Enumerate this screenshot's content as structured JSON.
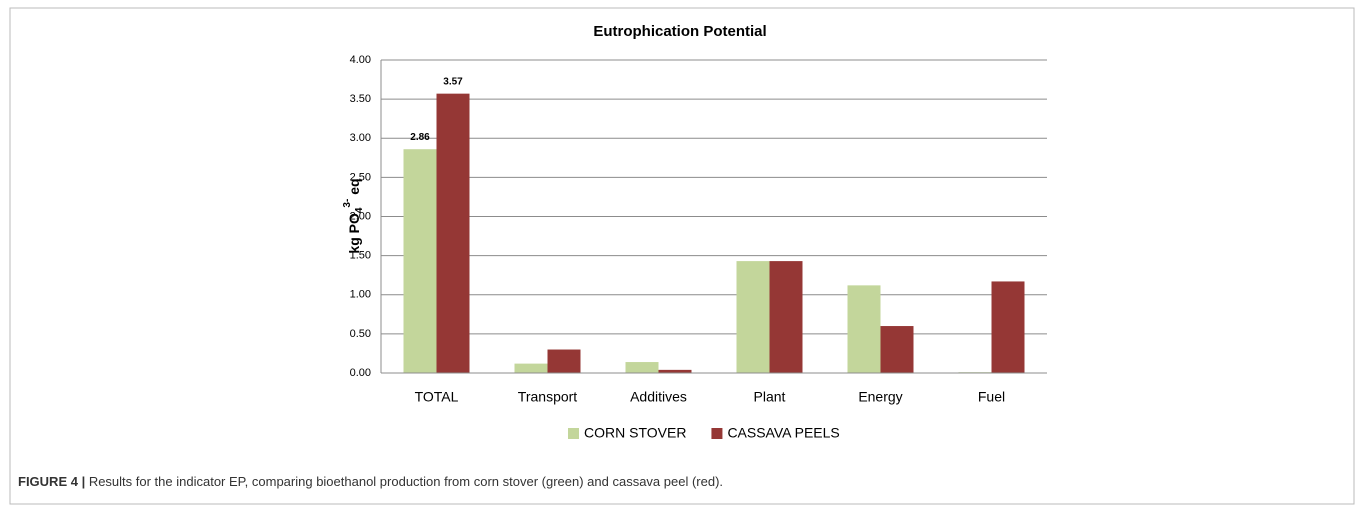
{
  "chart_data": {
    "type": "bar",
    "title": "Eutrophication Potential",
    "y_label": {
      "text": "kg PO",
      "sub": "4",
      "sup": "3-",
      "suffix": " eq"
    },
    "categories": [
      "TOTAL",
      "Transport",
      "Additives",
      "Plant",
      "Energy",
      "Fuel"
    ],
    "series": [
      {
        "name": "CORN STOVER",
        "color": "#c3d69b",
        "values": [
          2.86,
          0.12,
          0.14,
          1.43,
          1.12,
          0.01
        ],
        "value_labels": [
          "2.86",
          null,
          null,
          null,
          null,
          null
        ]
      },
      {
        "name": "CASSAVA PEELS",
        "color": "#953735",
        "values": [
          3.57,
          0.3,
          0.04,
          1.43,
          0.6,
          1.17
        ],
        "value_labels": [
          "3.57",
          null,
          null,
          null,
          null,
          null
        ]
      }
    ],
    "ylim": [
      0,
      4
    ],
    "yticks": [
      {
        "value": 0,
        "label": "0.00"
      },
      {
        "value": 0.5,
        "label": "0.50"
      },
      {
        "value": 1,
        "label": "1.00"
      },
      {
        "value": 1.5,
        "label": "1.50"
      },
      {
        "value": 2,
        "label": "2.00"
      },
      {
        "value": 2.5,
        "label": "2.50"
      },
      {
        "value": 3,
        "label": "3.00"
      },
      {
        "value": 3.5,
        "label": "3.50"
      },
      {
        "value": 4,
        "label": "4.00"
      }
    ],
    "grid": true,
    "legend": "bottom"
  },
  "caption": {
    "label": "FIGURE 4 |",
    "text": " Results for the indicator EP, comparing bioethanol production from corn stover (green) and cassava peel (red)."
  }
}
